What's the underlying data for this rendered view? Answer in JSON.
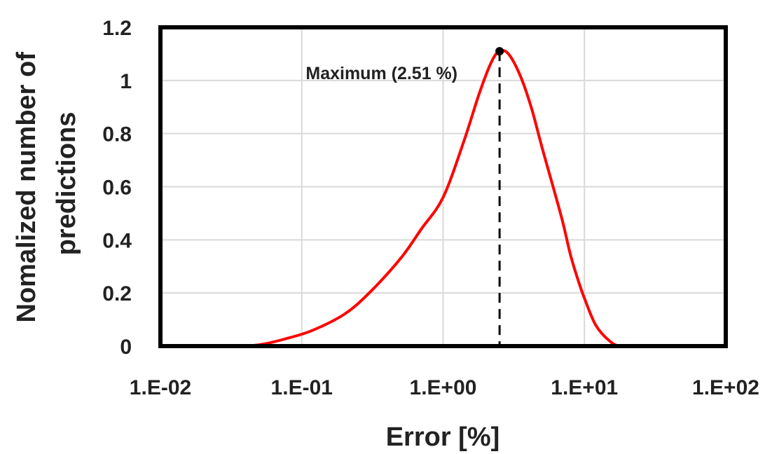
{
  "chart_data": {
    "type": "line",
    "x_scale": "log",
    "xlim": [
      0.01,
      100
    ],
    "ylim": [
      0,
      1.2
    ],
    "grid": true,
    "xlabel": "Error [%]",
    "ylabel_lines": [
      "Nomalized number of",
      "predictions"
    ],
    "x_ticks": [
      {
        "value": 0.01,
        "label": "1.E-02"
      },
      {
        "value": 0.1,
        "label": "1.E-01"
      },
      {
        "value": 1,
        "label": "1.E+00"
      },
      {
        "value": 10,
        "label": "1.E+01"
      },
      {
        "value": 100,
        "label": "1.E+02"
      }
    ],
    "y_ticks": [
      {
        "value": 0,
        "label": "0"
      },
      {
        "value": 0.2,
        "label": "0.2"
      },
      {
        "value": 0.4,
        "label": "0.4"
      },
      {
        "value": 0.6,
        "label": "0.6"
      },
      {
        "value": 0.8,
        "label": "0.8"
      },
      {
        "value": 1,
        "label": "1"
      },
      {
        "value": 1.2,
        "label": "1.2"
      }
    ],
    "series": [
      {
        "color": "#ff0000",
        "x": [
          0.01,
          0.03,
          0.05,
          0.08,
          0.12,
          0.2,
          0.3,
          0.5,
          0.7,
          1.0,
          1.4,
          1.8,
          2.2,
          2.51,
          2.9,
          3.5,
          4.2,
          5.0,
          6.0,
          7.0,
          8.0,
          9.0,
          10.0,
          12.0,
          15.0,
          18.0,
          25.0,
          50.0,
          100.0
        ],
        "y": [
          0,
          0,
          0.005,
          0.03,
          0.06,
          0.12,
          0.2,
          0.33,
          0.44,
          0.56,
          0.77,
          0.95,
          1.07,
          1.11,
          1.1,
          1.02,
          0.9,
          0.75,
          0.6,
          0.47,
          0.34,
          0.25,
          0.18,
          0.08,
          0.02,
          0.0,
          0,
          0,
          0
        ]
      }
    ],
    "annotations": [
      {
        "text": "Maximum (2.51 %)",
        "x": 2.51,
        "y": 1.11,
        "marker_color": "#000000",
        "dashed_line": true
      }
    ]
  }
}
